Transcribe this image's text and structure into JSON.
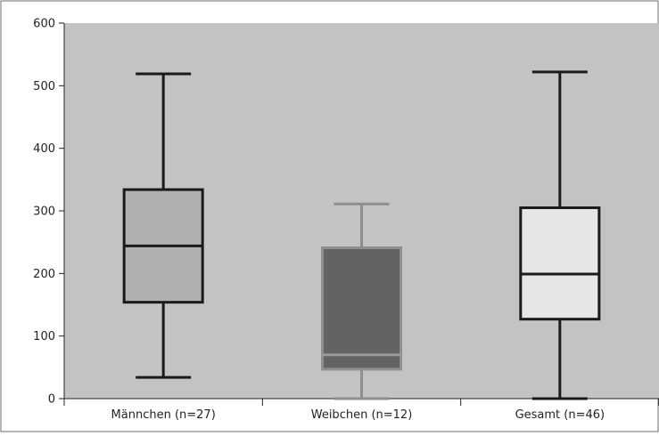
{
  "chart_data": {
    "type": "boxplot",
    "title": "",
    "xlabel": "",
    "ylabel": "",
    "ylim": [
      0,
      600
    ],
    "yticks": [
      0,
      100,
      200,
      300,
      400,
      500,
      600
    ],
    "grid": false,
    "legend": "none",
    "plot_background": "#c3c3c3",
    "categories": [
      "Männchen (n=27)",
      "Weibchen (n=12)",
      "Gesamt (n=46)"
    ],
    "boxes": [
      {
        "label": "Männchen (n=27)",
        "min": 34,
        "q1": 154,
        "median": 244,
        "q3": 334,
        "max": 519,
        "fill": "#b0b0b0",
        "stroke": "#1a1a1a",
        "median_color": "#1a1a1a"
      },
      {
        "label": "Weibchen (n=12)",
        "min": 0,
        "q1": 47,
        "median": 70,
        "q3": 241,
        "max": 311,
        "fill": "#636363",
        "stroke": "#8e8e8e",
        "median_color": "#9a9a9a"
      },
      {
        "label": "Gesamt (n=46)",
        "min": 0,
        "q1": 127,
        "median": 199,
        "q3": 305,
        "max": 522,
        "fill": "#e6e6e6",
        "stroke": "#1a1a1a",
        "median_color": "#1a1a1a"
      }
    ]
  }
}
